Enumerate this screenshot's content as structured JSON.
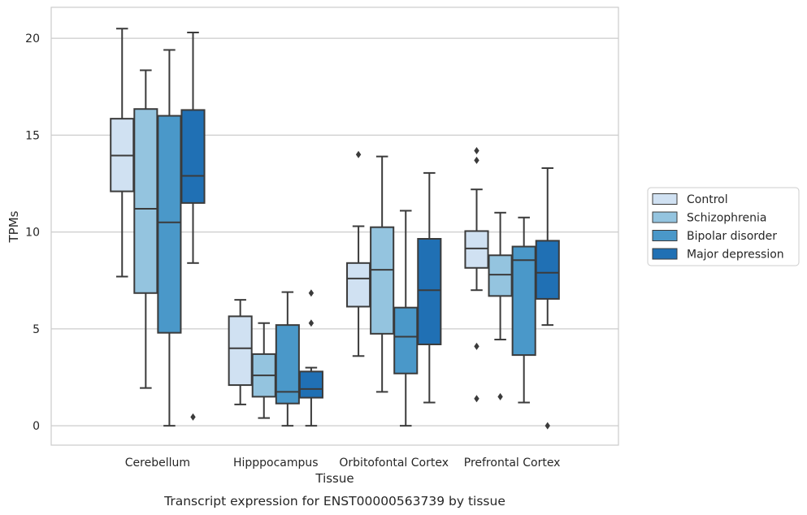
{
  "chart_data": {
    "type": "box",
    "title": "Transcript expression for ENST00000563739 by tissue",
    "xlabel": "Tissue",
    "ylabel": "TPMs",
    "ylim": [
      -1,
      21.6
    ],
    "yticks": [
      0,
      5,
      10,
      15,
      20
    ],
    "grid": "horizontal",
    "legend_position": "right",
    "categories": [
      "Cerebellum",
      "Hipppocampus",
      "Orbitofontal Cortex",
      "Prefrontal Cortex"
    ],
    "series": [
      {
        "name": "Control",
        "color": "#d0e1f2",
        "boxes": [
          {
            "whisker_low": 7.7,
            "q1": 12.1,
            "median": 13.95,
            "q3": 15.85,
            "whisker_high": 20.5,
            "outliers": []
          },
          {
            "whisker_low": 1.1,
            "q1": 2.1,
            "median": 4.0,
            "q3": 5.65,
            "whisker_high": 6.5,
            "outliers": []
          },
          {
            "whisker_low": 3.6,
            "q1": 6.15,
            "median": 7.6,
            "q3": 8.4,
            "whisker_high": 10.3,
            "outliers": [
              14.0
            ]
          },
          {
            "whisker_low": 7.0,
            "q1": 8.15,
            "median": 9.15,
            "q3": 10.05,
            "whisker_high": 12.2,
            "outliers": [
              14.2,
              13.7,
              4.1,
              1.4
            ]
          }
        ]
      },
      {
        "name": "Schizophrenia",
        "color": "#94c4df",
        "boxes": [
          {
            "whisker_low": 1.95,
            "q1": 6.85,
            "median": 11.2,
            "q3": 16.35,
            "whisker_high": 18.35,
            "outliers": []
          },
          {
            "whisker_low": 0.4,
            "q1": 1.5,
            "median": 2.6,
            "q3": 3.7,
            "whisker_high": 5.3,
            "outliers": []
          },
          {
            "whisker_low": 1.75,
            "q1": 4.75,
            "median": 8.05,
            "q3": 10.25,
            "whisker_high": 13.9,
            "outliers": []
          },
          {
            "whisker_low": 4.45,
            "q1": 6.7,
            "median": 7.8,
            "q3": 8.8,
            "whisker_high": 11.0,
            "outliers": [
              1.5
            ]
          }
        ]
      },
      {
        "name": "Bipolar disorder",
        "color": "#4a98c9",
        "boxes": [
          {
            "whisker_low": 0.0,
            "q1": 4.8,
            "median": 10.5,
            "q3": 16.0,
            "whisker_high": 19.4,
            "outliers": []
          },
          {
            "whisker_low": 0.0,
            "q1": 1.15,
            "median": 1.75,
            "q3": 5.2,
            "whisker_high": 6.9,
            "outliers": []
          },
          {
            "whisker_low": 0.0,
            "q1": 2.7,
            "median": 4.6,
            "q3": 6.1,
            "whisker_high": 11.1,
            "outliers": []
          },
          {
            "whisker_low": 1.2,
            "q1": 3.65,
            "median": 8.55,
            "q3": 9.25,
            "whisker_high": 10.75,
            "outliers": []
          }
        ]
      },
      {
        "name": "Major depression",
        "color": "#2070b4",
        "boxes": [
          {
            "whisker_low": 8.4,
            "q1": 11.5,
            "median": 12.9,
            "q3": 16.3,
            "whisker_high": 20.3,
            "outliers": [
              0.45
            ]
          },
          {
            "whisker_low": 0.0,
            "q1": 1.45,
            "median": 1.9,
            "q3": 2.8,
            "whisker_high": 3.0,
            "outliers": [
              6.85,
              5.3
            ]
          },
          {
            "whisker_low": 1.2,
            "q1": 4.2,
            "median": 7.0,
            "q3": 9.65,
            "whisker_high": 13.05,
            "outliers": []
          },
          {
            "whisker_low": 5.2,
            "q1": 6.55,
            "median": 7.9,
            "q3": 9.55,
            "whisker_high": 13.3,
            "outliers": [
              0.0
            ]
          }
        ]
      }
    ]
  }
}
